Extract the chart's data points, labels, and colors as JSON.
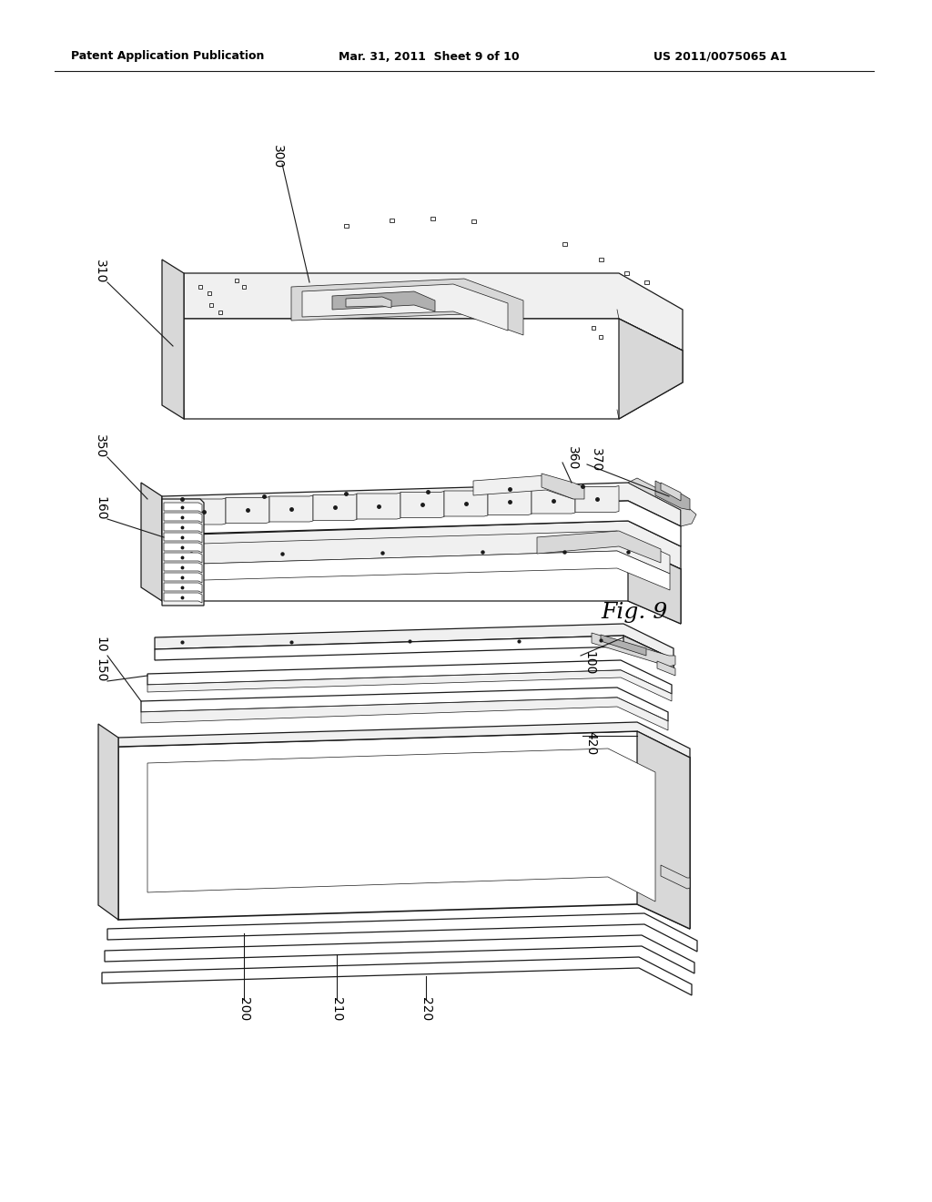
{
  "header_left": "Patent Application Publication",
  "header_mid": "Mar. 31, 2011  Sheet 9 of 10",
  "header_right": "US 2011/0075065 A1",
  "fig_label": "Fig. 9",
  "bg_color": "#ffffff",
  "lc": "#1a1a1a",
  "lw_main": 0.9,
  "lw_thin": 0.5,
  "lw_thick": 1.2,
  "fc_white": "#ffffff",
  "fc_light": "#f0f0f0",
  "fc_mid": "#d8d8d8",
  "fc_dark": "#b0b0b0"
}
